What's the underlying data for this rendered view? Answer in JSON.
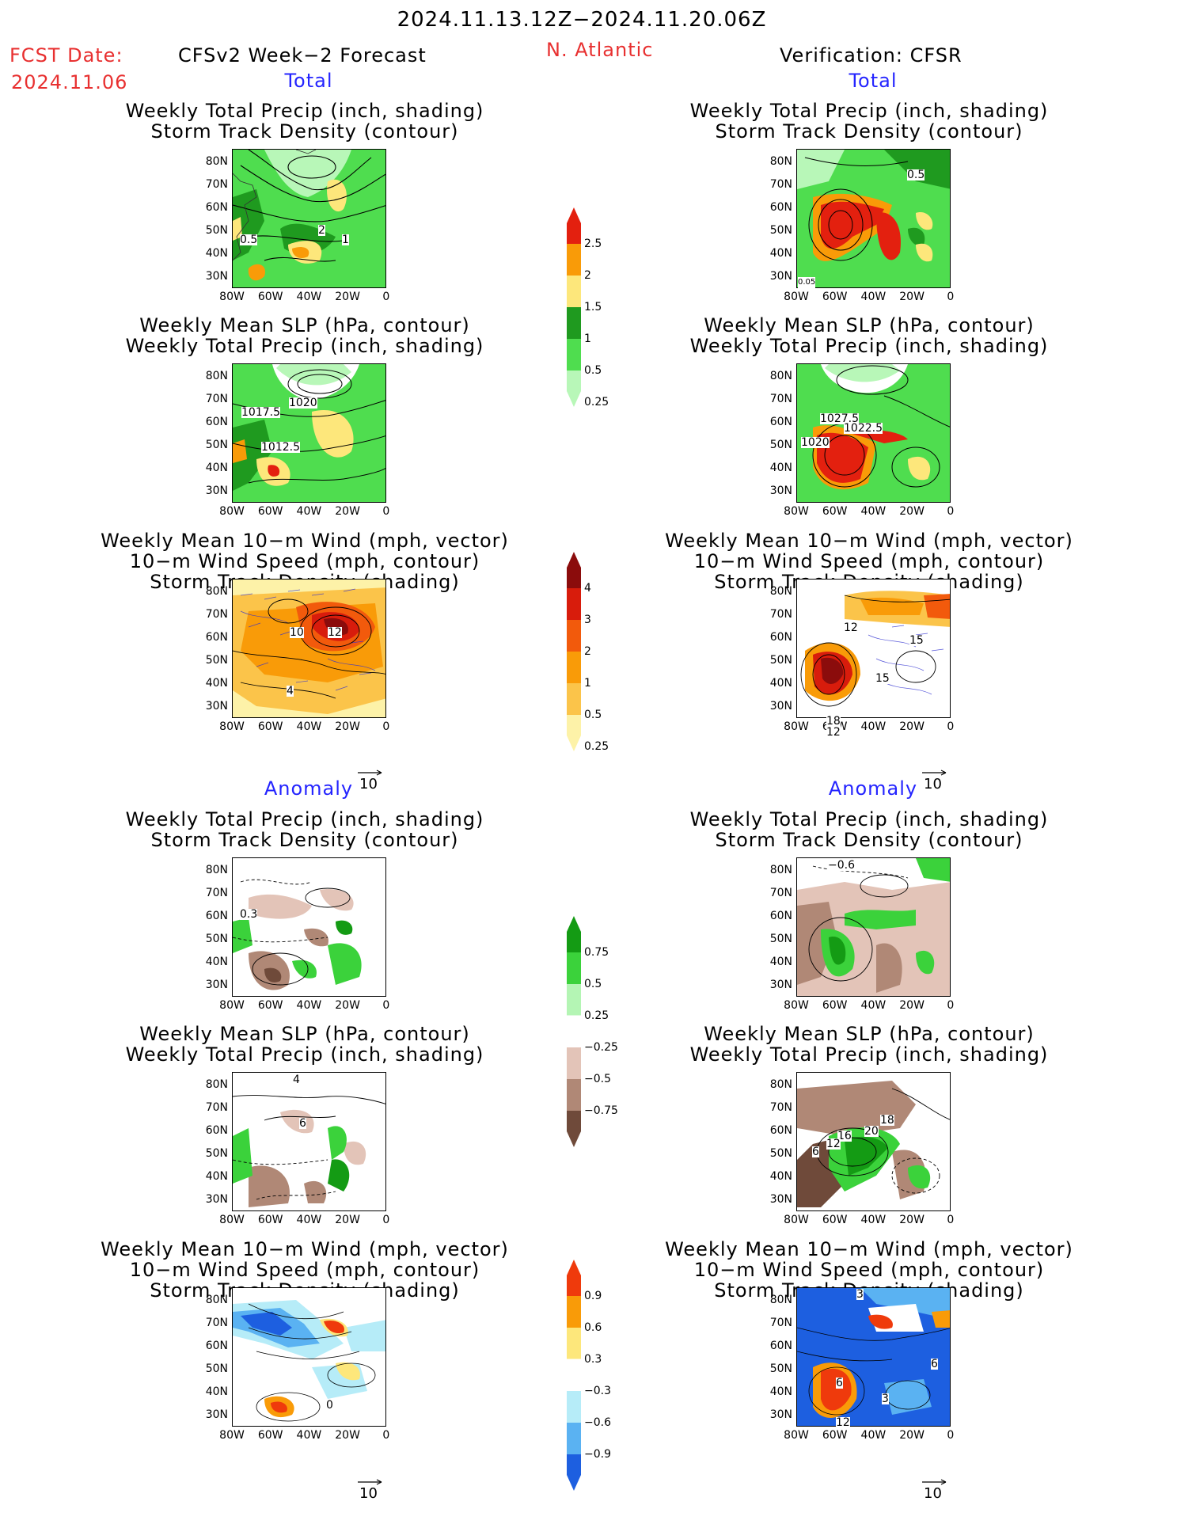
{
  "header": {
    "period": "2024.11.13.12Z−2024.11.20.06Z",
    "fcst_label": "FCST Date:",
    "fcst_date": "2024.11.06",
    "model": "CFSv2 Week−2 Forecast",
    "region": "N. Atlantic",
    "verification": "Verification: CFSR"
  },
  "section_labels": {
    "total": "Total",
    "anomaly": "Anomaly"
  },
  "titles": {
    "precip_storm": [
      "Weekly Total Precip (inch, shading)",
      "Storm Track Density (contour)"
    ],
    "slp_precip": [
      "Weekly Mean SLP (hPa, contour)",
      "Weekly Total Precip (inch, shading)"
    ],
    "wind_storm": [
      "Weekly Mean 10−m Wind (mph, vector)",
      "10−m Wind Speed (mph, contour)",
      "Storm Track Density (shading)"
    ]
  },
  "axes": {
    "lat_ticks": [
      "80N",
      "70N",
      "60N",
      "50N",
      "40N",
      "30N"
    ],
    "lon_ticks": [
      "80W",
      "60W",
      "40W",
      "20W",
      "0"
    ]
  },
  "reference_vector": "10",
  "colorbars": {
    "precip_total": {
      "labels": [
        "2.5",
        "2",
        "1.5",
        "1",
        "0.5",
        "0.25"
      ],
      "colors": [
        "#e3200f",
        "#f99b08",
        "#fde77b",
        "#1f9a1f",
        "#4fdd4f",
        "#b8f7b8"
      ]
    },
    "storm_total": {
      "labels": [
        "4",
        "3",
        "2",
        "1",
        "0.5",
        "0.25"
      ],
      "colors": [
        "#8b0c0c",
        "#d81c0c",
        "#f25a0c",
        "#f99b08",
        "#fbc44a",
        "#fdf2a8"
      ]
    },
    "precip_anom": {
      "labels": [
        "0.75",
        "0.5",
        "0.25",
        "−0.25",
        "−0.5",
        "−0.75"
      ],
      "colors": [
        "#149b14",
        "#3bd23b",
        "#b4f5b4",
        "#ffffff",
        "#e3c4b8",
        "#b08876",
        "#6f4a3a"
      ]
    },
    "storm_anom": {
      "labels": [
        "0.9",
        "0.6",
        "0.3",
        "−0.3",
        "−0.6",
        "−0.9"
      ],
      "colors": [
        "#ef3a0c",
        "#f99b08",
        "#fde77b",
        "#ffffff",
        "#b6ecf8",
        "#5ab2f2",
        "#1d5fe0"
      ]
    }
  },
  "contour_labels": {
    "fc_total_precip": [
      "0.5",
      "2",
      "1"
    ],
    "vf_total_precip": [
      "0.5",
      "0.05"
    ],
    "fc_total_slp": [
      "1020",
      "1017.5",
      "1012.5"
    ],
    "vf_total_slp": [
      "1027.5",
      "1022.5",
      "1020"
    ],
    "fc_total_wind": [
      "10",
      "12",
      "4"
    ],
    "vf_total_wind": [
      "12",
      "15",
      "15",
      "18",
      "12"
    ],
    "fc_anom_precip": [
      "0.3"
    ],
    "vf_anom_precip": [
      "−0.6"
    ],
    "fc_anom_slp": [
      "4",
      "6"
    ],
    "vf_anom_slp": [
      "18",
      "20",
      "16",
      "12",
      "6"
    ],
    "fc_anom_wind": [
      "0"
    ],
    "vf_anom_wind": [
      "3",
      "6",
      "6",
      "3",
      "12"
    ]
  }
}
